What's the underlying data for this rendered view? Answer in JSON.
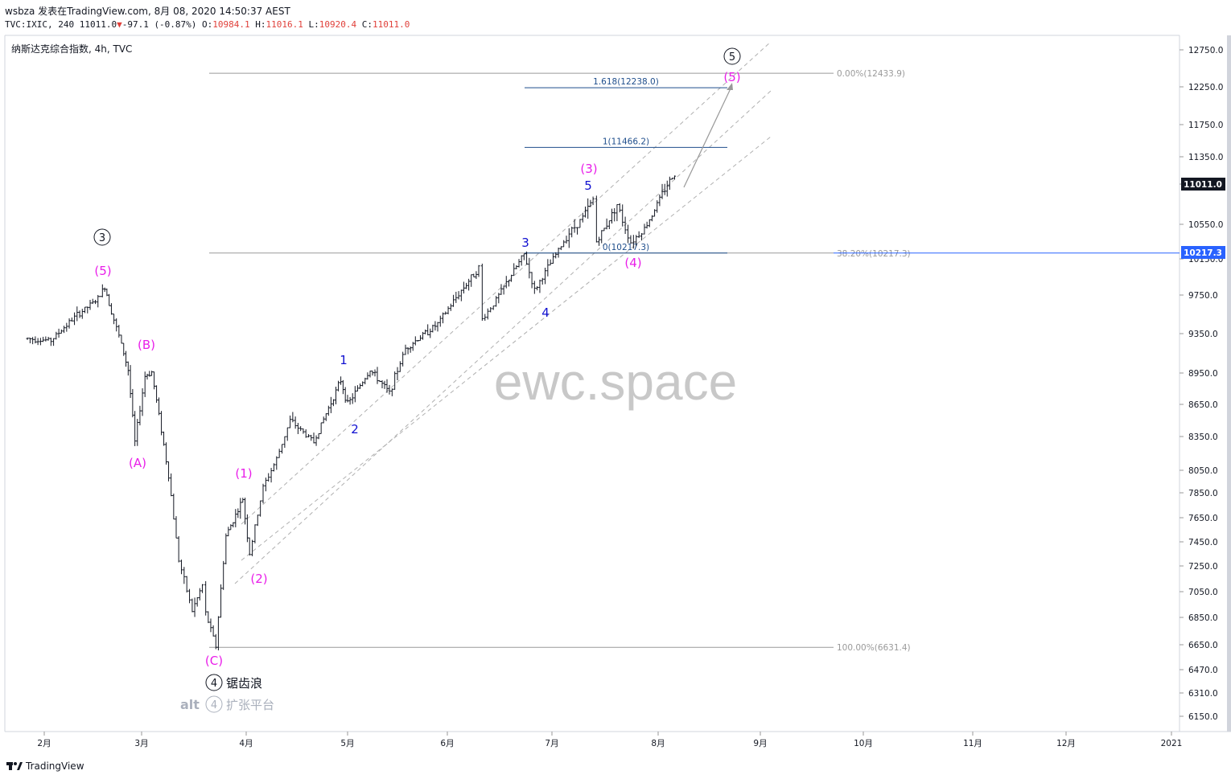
{
  "header": {
    "line1": "wsbza 发表在TradingView.com, 8月 08, 2020 14:50:37 AEST",
    "symbol": "TVC:IXIC, 240",
    "last": "11011.0",
    "change": "-97.1 (-0.87%)",
    "o_label": "O:",
    "o_val": "10984.1",
    "h_label": "H:",
    "h_val": "11016.1",
    "l_label": "L:",
    "l_val": "10920.4",
    "c_label": "C:",
    "c_val": "11011.0"
  },
  "legend": "纳斯达克综合指数, 4h, TVC",
  "watermark": "ewc.space",
  "footer": {
    "brand": "TradingView"
  },
  "colors": {
    "up": "#131722",
    "magenta": "#e91ee9",
    "blue": "#1010d0",
    "fib_blue": "#2c5aa0",
    "grey": "#999999",
    "price_tag": "#131722",
    "level_tag": "#2962ff"
  },
  "chart_data": {
    "type": "line",
    "title": "纳斯达克综合指数, 4h, TVC",
    "x_ticks": [
      "2月",
      "3月",
      "4月",
      "5月",
      "6月",
      "7月",
      "8月",
      "9月",
      "10月",
      "11月",
      "12月",
      "2021"
    ],
    "y_ticks": [
      12750,
      12250,
      11750,
      11350,
      10950,
      10550,
      10150,
      9750,
      9350,
      8950,
      8650,
      8350,
      8050,
      7850,
      7650,
      7450,
      7250,
      7050,
      6850,
      6650,
      6470,
      6310,
      6150
    ],
    "y_tick_labels": [
      "12750.0",
      "12250.0",
      "11750.0",
      "11350.0",
      "",
      "10550.0",
      "10150.0",
      "9750.0",
      "9350.0",
      "8950.0",
      "8650.0",
      "8350.0",
      "8050.0",
      "7850.0",
      "7650.0",
      "7450.0",
      "7250.0",
      "7050.0",
      "6850.0",
      "6650.0",
      "6470.0",
      "6310.0",
      "6150.0"
    ],
    "price_tag_current": "11011.0",
    "price_tag_level": "10217.3",
    "price_path": [
      {
        "d": "2020-01-27",
        "v": 9300
      },
      {
        "d": "2020-02-03",
        "v": 9280
      },
      {
        "d": "2020-02-10",
        "v": 9520
      },
      {
        "d": "2020-02-17",
        "v": 9710
      },
      {
        "d": "2020-02-19",
        "v": 9840
      },
      {
        "d": "2020-02-21",
        "v": 9580
      },
      {
        "d": "2020-02-24",
        "v": 9240
      },
      {
        "d": "2020-02-26",
        "v": 8980
      },
      {
        "d": "2020-02-28",
        "v": 8300
      },
      {
        "d": "2020-03-02",
        "v": 8920
      },
      {
        "d": "2020-03-04",
        "v": 8960
      },
      {
        "d": "2020-03-09",
        "v": 8000
      },
      {
        "d": "2020-03-12",
        "v": 7300
      },
      {
        "d": "2020-03-16",
        "v": 6900
      },
      {
        "d": "2020-03-19",
        "v": 7100
      },
      {
        "d": "2020-03-20",
        "v": 6880
      },
      {
        "d": "2020-03-23",
        "v": 6640
      },
      {
        "d": "2020-03-26",
        "v": 7500
      },
      {
        "d": "2020-03-31",
        "v": 7800
      },
      {
        "d": "2020-04-02",
        "v": 7350
      },
      {
        "d": "2020-04-06",
        "v": 7900
      },
      {
        "d": "2020-04-10",
        "v": 8150
      },
      {
        "d": "2020-04-14",
        "v": 8500
      },
      {
        "d": "2020-04-21",
        "v": 8300
      },
      {
        "d": "2020-04-29",
        "v": 8880
      },
      {
        "d": "2020-05-01",
        "v": 8650
      },
      {
        "d": "2020-05-08",
        "v": 8980
      },
      {
        "d": "2020-05-14",
        "v": 8760
      },
      {
        "d": "2020-05-19",
        "v": 9200
      },
      {
        "d": "2020-05-29",
        "v": 9450
      },
      {
        "d": "2020-06-05",
        "v": 9800
      },
      {
        "d": "2020-06-10",
        "v": 10050
      },
      {
        "d": "2020-06-11",
        "v": 9500
      },
      {
        "d": "2020-06-15",
        "v": 9700
      },
      {
        "d": "2020-06-23",
        "v": 10200
      },
      {
        "d": "2020-06-26",
        "v": 9800
      },
      {
        "d": "2020-07-06",
        "v": 10450
      },
      {
        "d": "2020-07-10",
        "v": 10620
      },
      {
        "d": "2020-07-13",
        "v": 10800
      },
      {
        "d": "2020-07-14",
        "v": 10350
      },
      {
        "d": "2020-07-20",
        "v": 10750
      },
      {
        "d": "2020-07-24",
        "v": 10340
      },
      {
        "d": "2020-07-28",
        "v": 10500
      },
      {
        "d": "2020-08-03",
        "v": 10900
      },
      {
        "d": "2020-08-06",
        "v": 11100
      },
      {
        "d": "2020-08-07",
        "v": 11011
      }
    ],
    "fib_retracement": [
      {
        "label": "0.00%(12433.9)",
        "value": 12433.9
      },
      {
        "label": "38.20%(10217.3)",
        "value": 10217.3
      },
      {
        "label": "100.00%(6631.4)",
        "value": 6631.4
      }
    ],
    "fib_extension": [
      {
        "label": "1.618(12238.0)",
        "value": 12238.0
      },
      {
        "label": "1(11466.2)",
        "value": 11466.2
      },
      {
        "label": "0(10217.3)",
        "value": 10217.3
      }
    ]
  },
  "annotations": {
    "circ3": "3",
    "circ4": "4",
    "circ4alt": "4",
    "circ5": "5",
    "p5_top": "(5)",
    "p5_big": "(5)",
    "pA": "(A)",
    "pB": "(B)",
    "pC": "(C)",
    "p1": "(1)",
    "p2": "(2)",
    "p3": "(3)",
    "p4": "(4)",
    "b1": "1",
    "b2": "2",
    "b3": "3",
    "b4": "4",
    "b5": "5",
    "sawtooth": "锯齿浪",
    "alt": "alt",
    "expanded_flat": "扩张平台"
  }
}
